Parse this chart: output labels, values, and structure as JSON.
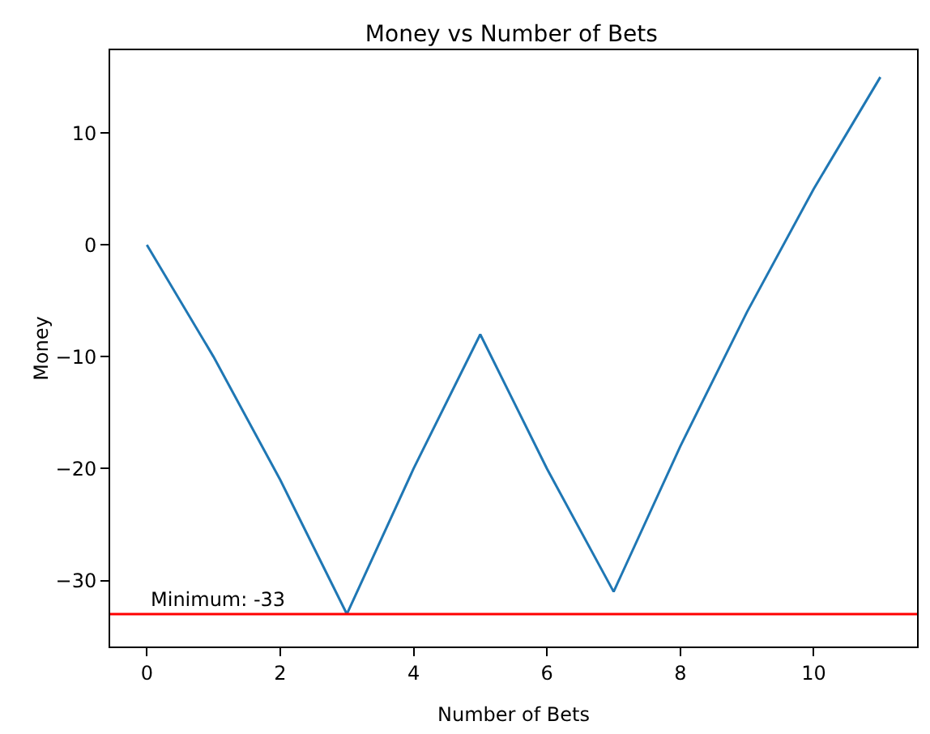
{
  "chart_data": {
    "type": "line",
    "title": "Money vs Number of Bets",
    "xlabel": "Number of Bets",
    "ylabel": "Money",
    "x": [
      0,
      1,
      2,
      3,
      4,
      5,
      6,
      7,
      8,
      9,
      10,
      11
    ],
    "series": [
      {
        "color": "#1f77b4",
        "values": [
          0,
          -10,
          -21,
          -33,
          -20,
          -8,
          -20,
          -31,
          -18,
          -6,
          5,
          15
        ]
      }
    ],
    "xlim": [
      -0.55,
      11.55
    ],
    "xticks": [
      0,
      2,
      4,
      6,
      8,
      10
    ],
    "ylim": [
      -35.9,
      17.4
    ],
    "yticks": [
      -30,
      -20,
      -10,
      0,
      10
    ],
    "ref_lines": [
      {
        "axis": "y",
        "value": -33,
        "color": "#ff0000"
      }
    ],
    "annotations": [
      {
        "text": "Minimum: -33",
        "x": 0,
        "y": -33
      }
    ],
    "grid": false,
    "marker": "none",
    "line_style": "solid"
  }
}
